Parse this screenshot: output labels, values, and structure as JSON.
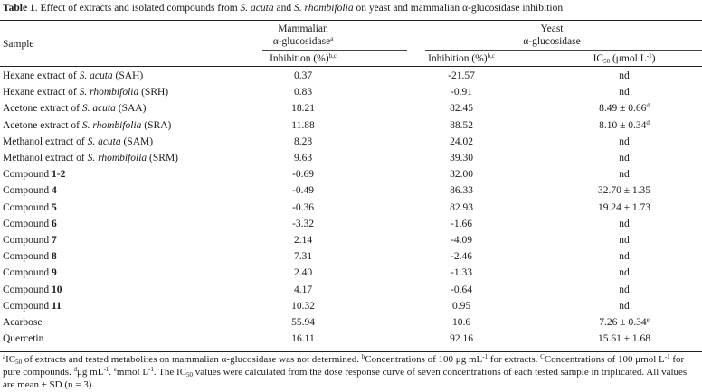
{
  "caption": {
    "label": "Table 1",
    "text_1": ". Effect of extracts and isolated compounds from ",
    "it_1": "S. acuta",
    "text_2": " and ",
    "it_2": "S. rhombifolia",
    "text_3": " on yeast and mammalian α-glucosidase inhibition"
  },
  "header": {
    "sample": "Sample",
    "mammalian_line1": "Mammalian",
    "mammalian_line2": "α-glucosidase",
    "mammalian_sup": "a",
    "yeast_line1": "Yeast",
    "yeast_line2": "α-glucosidase",
    "inhibition_mam": "Inhibition (%)",
    "inhibition_mam_sup": "b,c",
    "inhibition_yeast": "Inhibition (%)",
    "inhibition_yeast_sup": "b,c",
    "ic50_pre": "IC",
    "ic50_sub": "50",
    "ic50_post": " (μmol L",
    "ic50_sup": "-1",
    "ic50_close": ")"
  },
  "rows": [
    {
      "pre": "Hexane extract of ",
      "it": "S. acuta",
      "bold": "",
      "post": " (SAH)",
      "mam": "0.37",
      "yeast": "-21.57",
      "ic": "nd",
      "ic_sup": ""
    },
    {
      "pre": "Hexane extract of ",
      "it": "S. rhombifolia",
      "bold": "",
      "post": " (SRH)",
      "mam": "0.83",
      "yeast": "-0.91",
      "ic": "nd",
      "ic_sup": ""
    },
    {
      "pre": "Acetone extract of ",
      "it": "S. acuta",
      "bold": "",
      "post": " (SAA)",
      "mam": "18.21",
      "yeast": "82.45",
      "ic": "8.49 ± 0.66",
      "ic_sup": "d"
    },
    {
      "pre": "Acetone extract of ",
      "it": "S. rhombifolia",
      "bold": "",
      "post": " (SRA)",
      "mam": "11.88",
      "yeast": "88.52",
      "ic": "8.10 ± 0.34",
      "ic_sup": "d"
    },
    {
      "pre": "Methanol extract of ",
      "it": "S. acuta",
      "bold": "",
      "post": " (SAM)",
      "mam": "8.28",
      "yeast": "24.02",
      "ic": "nd",
      "ic_sup": ""
    },
    {
      "pre": "Methanol extract of ",
      "it": "S. rhombifolia",
      "bold": "",
      "post": " (SRM)",
      "mam": "9.63",
      "yeast": "39.30",
      "ic": "nd",
      "ic_sup": ""
    },
    {
      "pre": "Compound ",
      "it": "",
      "bold": "1-2",
      "post": "",
      "mam": "-0.69",
      "yeast": "32.00",
      "ic": "nd",
      "ic_sup": ""
    },
    {
      "pre": "Compound ",
      "it": "",
      "bold": "4",
      "post": "",
      "mam": "-0.49",
      "yeast": "86.33",
      "ic": "32.70 ± 1.35",
      "ic_sup": ""
    },
    {
      "pre": "Compound ",
      "it": "",
      "bold": "5",
      "post": "",
      "mam": "-0.36",
      "yeast": "82.93",
      "ic": "19.24 ± 1.73",
      "ic_sup": ""
    },
    {
      "pre": "Compound ",
      "it": "",
      "bold": "6",
      "post": "",
      "mam": "-3.32",
      "yeast": "-1.66",
      "ic": "nd",
      "ic_sup": ""
    },
    {
      "pre": "Compound ",
      "it": "",
      "bold": "7",
      "post": "",
      "mam": "2.14",
      "yeast": "-4.09",
      "ic": "nd",
      "ic_sup": ""
    },
    {
      "pre": "Compound ",
      "it": "",
      "bold": "8",
      "post": "",
      "mam": "7.31",
      "yeast": "-2.46",
      "ic": "nd",
      "ic_sup": ""
    },
    {
      "pre": "Compound ",
      "it": "",
      "bold": "9",
      "post": "",
      "mam": "2.40",
      "yeast": "-1.33",
      "ic": "nd",
      "ic_sup": ""
    },
    {
      "pre": "Compound ",
      "it": "",
      "bold": "10",
      "post": "",
      "mam": "4.17",
      "yeast": "-0.64",
      "ic": "nd",
      "ic_sup": ""
    },
    {
      "pre": "Compound ",
      "it": "",
      "bold": "11",
      "post": "",
      "mam": "10.32",
      "yeast": "0.95",
      "ic": "nd",
      "ic_sup": ""
    },
    {
      "pre": "Acarbose",
      "it": "",
      "bold": "",
      "post": "",
      "mam": "55.94",
      "yeast": "10.6",
      "ic": "7.26 ± 0.34",
      "ic_sup": "e"
    },
    {
      "pre": "Quercetin",
      "it": "",
      "bold": "",
      "post": "",
      "mam": "16.11",
      "yeast": "92.16",
      "ic": "15.61 ± 1.68",
      "ic_sup": ""
    }
  ],
  "footnote": {
    "a_sup": "a",
    "a_pre": "IC",
    "a_sub": "50",
    "a_text": " of extracts and tested metabolites on mammalian α-glucosidase was not determined. ",
    "b_sup": "b",
    "b_text_1": "Concentrations of 100 μg mL",
    "b_sup2": "-1",
    "b_text_2": " for extracts. ",
    "c_sup": "C",
    "c_text_1": "Concentrations of 100 μmol L",
    "c_sup2": "-1",
    "c_text_2": " for pure compounds. ",
    "d_sup": "d",
    "d_text_1": "μg mL",
    "d_sup2": "-1",
    "d_text_2": ". ",
    "e_sup": "e",
    "e_text_1": "mmol L",
    "e_sup2": "-1",
    "e_text_2": ". The IC",
    "e_sub": "50",
    "e_text_3": " values were calculated from the dose response curve of seven concentrations of each tested sample in triplicated. All values are mean ± SD (n = 3)."
  }
}
